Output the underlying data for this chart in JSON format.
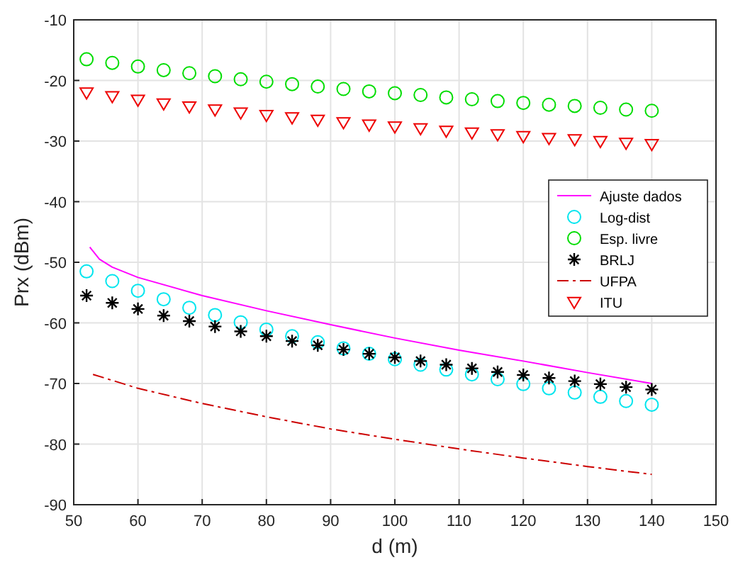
{
  "chart_data": {
    "type": "scatter",
    "xlabel": "d (m)",
    "ylabel": "Prx (dBm)",
    "xlim": [
      50,
      150
    ],
    "ylim": [
      -90,
      -10
    ],
    "xticks": [
      50,
      60,
      70,
      80,
      90,
      100,
      110,
      120,
      130,
      140,
      150
    ],
    "yticks": [
      -90,
      -80,
      -70,
      -60,
      -50,
      -40,
      -30,
      -20,
      -10
    ],
    "grid": true,
    "legend": "right",
    "series": [
      {
        "name": "Ajuste dados",
        "type": "line",
        "line_style": "solid",
        "color": "#ff00ff",
        "x": [
          52.5,
          54,
          56,
          60,
          70,
          80,
          90,
          100,
          110,
          120,
          130,
          140
        ],
        "values": [
          -47.5,
          -49.5,
          -50.8,
          -52.5,
          -55.5,
          -58,
          -60.3,
          -62.5,
          -64.5,
          -66.3,
          -68.2,
          -70
        ]
      },
      {
        "name": "Log-dist",
        "marker": "circle",
        "color": "#00e5ee",
        "x": [
          52,
          56,
          60,
          64,
          68,
          72,
          76,
          80,
          84,
          88,
          92,
          96,
          100,
          104,
          108,
          112,
          116,
          120,
          124,
          128,
          132,
          136,
          140
        ],
        "values": [
          -51.5,
          -53.1,
          -54.7,
          -56.1,
          -57.5,
          -58.7,
          -59.9,
          -61.1,
          -62.2,
          -63.2,
          -64.2,
          -65.1,
          -66.0,
          -66.9,
          -67.7,
          -68.5,
          -69.3,
          -70.1,
          -70.8,
          -71.5,
          -72.2,
          -72.9,
          -73.5
        ]
      },
      {
        "name": "Esp. livre",
        "marker": "circle",
        "color": "#00dd00",
        "x": [
          52,
          56,
          60,
          64,
          68,
          72,
          76,
          80,
          84,
          88,
          92,
          96,
          100,
          104,
          108,
          112,
          116,
          120,
          124,
          128,
          132,
          136,
          140
        ],
        "values": [
          -16.5,
          -17.1,
          -17.7,
          -18.3,
          -18.8,
          -19.3,
          -19.8,
          -20.2,
          -20.6,
          -21.0,
          -21.4,
          -21.8,
          -22.1,
          -22.4,
          -22.8,
          -23.1,
          -23.4,
          -23.7,
          -24.0,
          -24.2,
          -24.5,
          -24.8,
          -25.0
        ]
      },
      {
        "name": "BRLJ",
        "marker": "cross",
        "color": "#000000",
        "x": [
          52,
          56,
          60,
          64,
          68,
          72,
          76,
          80,
          84,
          88,
          92,
          96,
          100,
          104,
          108,
          112,
          116,
          120,
          124,
          128,
          132,
          136,
          140
        ],
        "values": [
          -55.5,
          -56.7,
          -57.7,
          -58.8,
          -59.7,
          -60.6,
          -61.4,
          -62.2,
          -63.0,
          -63.7,
          -64.4,
          -65.1,
          -65.7,
          -66.3,
          -66.9,
          -67.5,
          -68.1,
          -68.6,
          -69.1,
          -69.6,
          -70.1,
          -70.6,
          -71.0
        ]
      },
      {
        "name": "UFPA",
        "type": "line",
        "line_style": "dashed",
        "color": "#cc0000",
        "x": [
          53,
          60,
          70,
          80,
          90,
          100,
          110,
          120,
          130,
          140
        ],
        "values": [
          -68.5,
          -70.8,
          -73.3,
          -75.5,
          -77.5,
          -79.2,
          -80.8,
          -82.3,
          -83.7,
          -85
        ]
      },
      {
        "name": "ITU",
        "marker": "triangle",
        "color": "#ee0000",
        "x": [
          52,
          56,
          60,
          64,
          68,
          72,
          76,
          80,
          84,
          88,
          92,
          96,
          100,
          104,
          108,
          112,
          116,
          120,
          124,
          128,
          132,
          136,
          140
        ],
        "values": [
          -22,
          -22.6,
          -23.2,
          -23.8,
          -24.3,
          -24.8,
          -25.3,
          -25.7,
          -26.1,
          -26.5,
          -26.9,
          -27.3,
          -27.6,
          -27.9,
          -28.3,
          -28.6,
          -28.9,
          -29.2,
          -29.5,
          -29.7,
          -30.0,
          -30.3,
          -30.5
        ]
      }
    ]
  }
}
